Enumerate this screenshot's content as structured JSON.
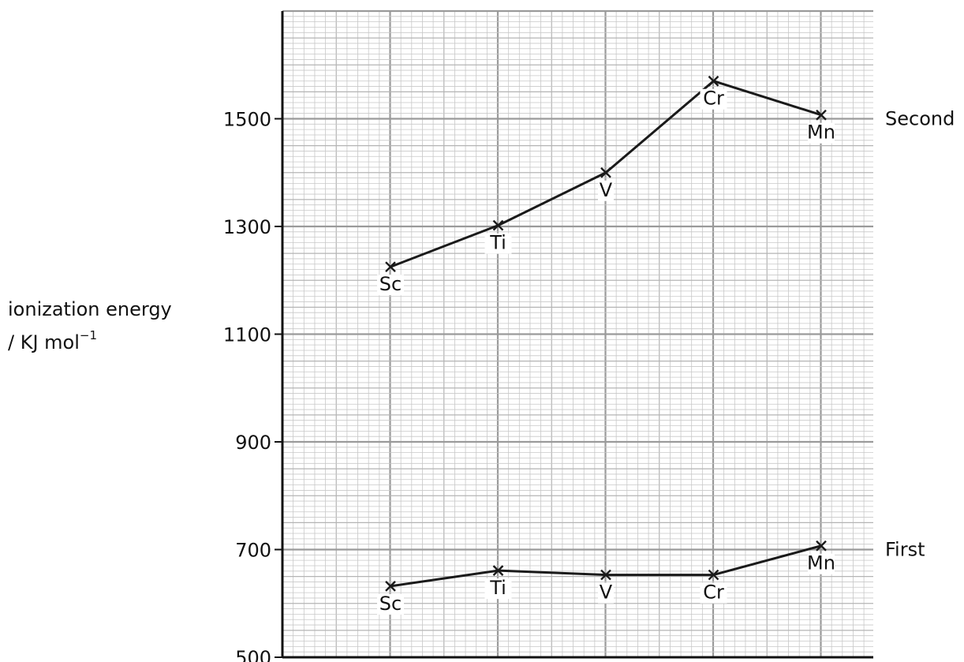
{
  "chart_data": {
    "type": "line",
    "title": "",
    "xlabel": "",
    "ylabel": {
      "line1": "ionization energy",
      "line2": "/ KJ mol",
      "superscript": "−1"
    },
    "categories": [
      "Sc",
      "Ti",
      "V",
      "Cr",
      "Mn"
    ],
    "ylim": [
      500,
      1700
    ],
    "yticks": [
      500,
      700,
      900,
      1100,
      1300,
      1500
    ],
    "grid": true,
    "series": [
      {
        "name": "Second",
        "values": [
          1225,
          1302,
          1400,
          1570,
          1507
        ],
        "labels": [
          "Sc",
          "Ti",
          "V",
          "Cr",
          "Mn"
        ]
      },
      {
        "name": "First",
        "values": [
          632,
          661,
          653,
          653,
          707
        ],
        "labels": [
          "Sc",
          "Ti",
          "V",
          "Cr",
          "Mn"
        ]
      }
    ],
    "line_color": "#1a1a1a",
    "grid_color": "#b4b4b4"
  }
}
